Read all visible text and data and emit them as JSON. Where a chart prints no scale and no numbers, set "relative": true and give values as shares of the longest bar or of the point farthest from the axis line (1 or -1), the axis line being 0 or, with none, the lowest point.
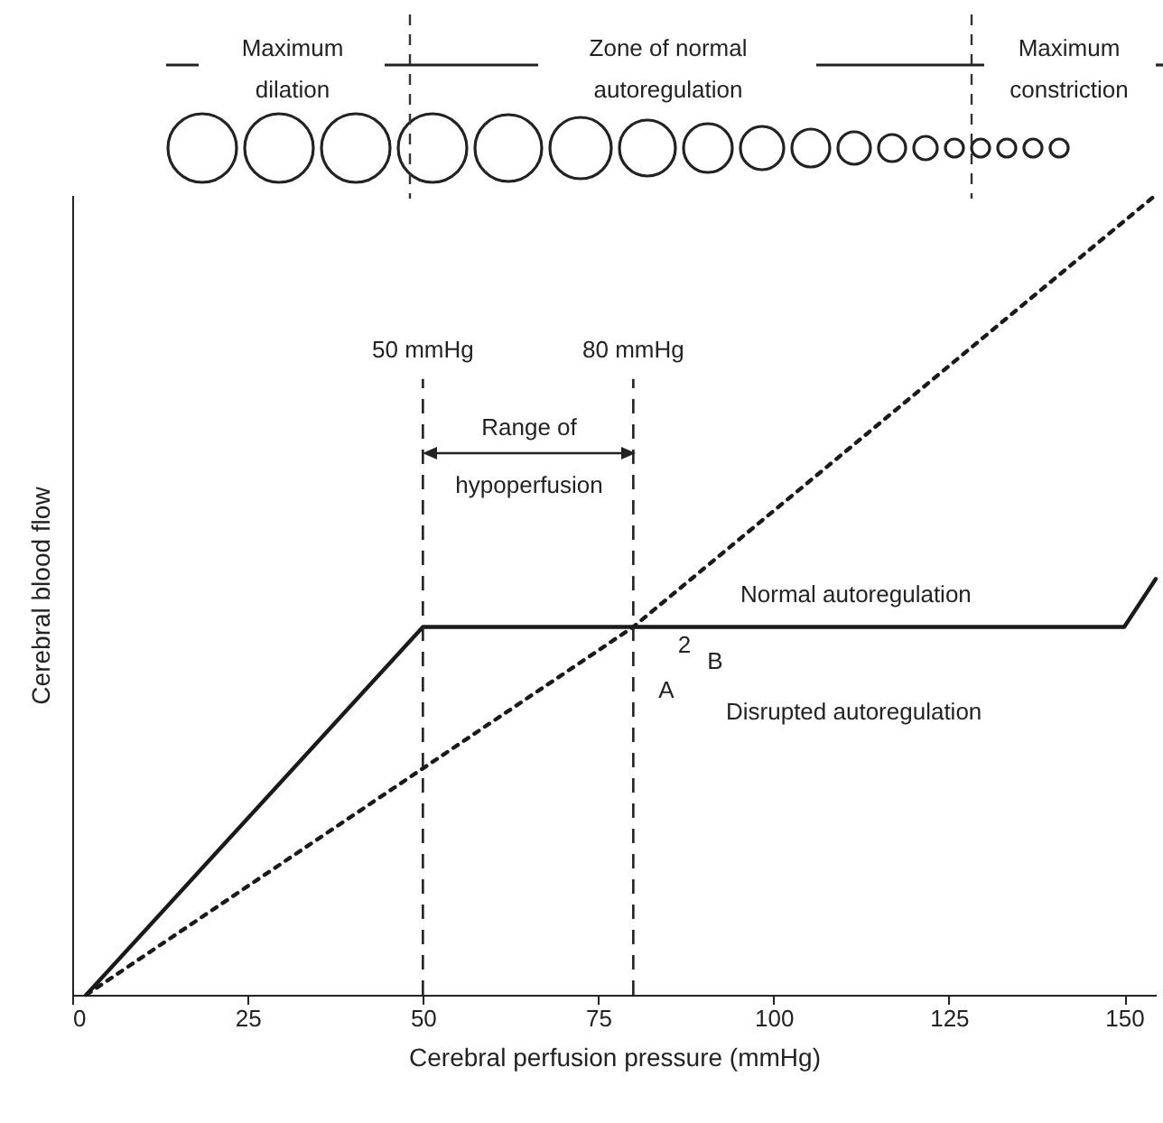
{
  "chart_data": {
    "type": "line",
    "relative": true,
    "xlabel": "Cerebral perfusion pressure (mmHg)",
    "ylabel": "Cerebral blood flow",
    "xlim": [
      0,
      154.5
    ],
    "xticks": [
      0,
      25,
      50,
      75,
      100,
      125,
      150
    ],
    "grid": false,
    "series": [
      {
        "x": [
          2,
          50,
          150,
          154.5
        ],
        "values": [
          0,
          0.46,
          0.46,
          0.52
        ],
        "color": "#1a1a1a",
        "line_style": "solid"
      },
      {
        "x": [
          2,
          80,
          154.5
        ],
        "values": [
          0,
          0.46,
          1
        ],
        "color": "#1a1a1a",
        "line_style": "dotted"
      }
    ],
    "ref_lines": [
      {
        "axis": "x",
        "value": 50,
        "label": "50 mmHg",
        "line_style": "dashed"
      },
      {
        "axis": "x",
        "value": 80,
        "label": "80 mmHg",
        "line_style": "dashed"
      }
    ],
    "annotations": [
      "Normal autoregulation",
      "Disrupted autoregulation",
      "A",
      "B",
      "2",
      "Maximum\ndilation",
      "Zone of normal\nautoregulation",
      "Maximum\nconstriction",
      "Range of\nhypoperfusion"
    ]
  }
}
